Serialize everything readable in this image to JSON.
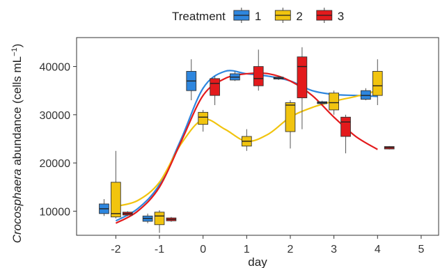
{
  "chart_data": {
    "type": "box",
    "xlabel": "day",
    "ylabel_italic": "Crocosphaera",
    "ylabel_rest": " abundance (cells mL",
    "ylabel_sup": "−1",
    "ylabel_close": ")",
    "legend": {
      "title": "Treatment",
      "position": "top",
      "entries": [
        "1",
        "2",
        "3"
      ]
    },
    "xlim": [
      -2.9,
      5.4
    ],
    "ylim": [
      5000,
      46000
    ],
    "x_ticks": [
      -2,
      -1,
      0,
      1,
      2,
      3,
      4,
      5
    ],
    "y_ticks": [
      10000,
      20000,
      30000,
      40000
    ],
    "grid": false,
    "series": [
      {
        "name": "1",
        "color": "#2E86DE",
        "boxes": [
          {
            "x": -2,
            "low": 9000,
            "q1": 9500,
            "median": 10500,
            "q3": 11500,
            "high": 12500
          },
          {
            "x": -1,
            "low": 7500,
            "q1": 7900,
            "median": 8500,
            "q3": 9000,
            "high": 9500
          },
          {
            "x": 0,
            "low": 33000,
            "q1": 35000,
            "median": 37000,
            "q3": 39000,
            "high": 41500
          },
          {
            "x": 1,
            "low": 37000,
            "q1": 37200,
            "median": 37800,
            "q3": 38500,
            "high": 39000
          },
          {
            "x": 2,
            "low": 37200,
            "q1": 37400,
            "median": 37600,
            "q3": 37800,
            "high": 38000
          },
          {
            "x": 3,
            "low": 32200,
            "q1": 32300,
            "median": 32500,
            "q3": 32700,
            "high": 32900
          },
          {
            "x": 4,
            "low": 33000,
            "q1": 33200,
            "median": 34000,
            "q3": 35000,
            "high": 35500
          }
        ],
        "trend": [
          [
            -2,
            8000
          ],
          [
            -1.5,
            10500
          ],
          [
            -1,
            15500
          ],
          [
            -0.5,
            25000
          ],
          [
            0,
            35500
          ],
          [
            0.5,
            39000
          ],
          [
            1,
            38500
          ],
          [
            1.5,
            38000
          ],
          [
            2,
            37000
          ],
          [
            2.5,
            35000
          ],
          [
            3,
            34200
          ],
          [
            3.5,
            34000
          ],
          [
            4,
            33800
          ]
        ]
      },
      {
        "name": "2",
        "color": "#F1C40F",
        "boxes": [
          {
            "x": -2,
            "low": 8500,
            "q1": 8800,
            "median": 9500,
            "q3": 16000,
            "high": 22500
          },
          {
            "x": -1,
            "low": 5500,
            "q1": 7200,
            "median": 9000,
            "q3": 9800,
            "high": 10200
          },
          {
            "x": 0,
            "low": 26500,
            "q1": 28000,
            "median": 29500,
            "q3": 30500,
            "high": 31000
          },
          {
            "x": 1,
            "low": 22500,
            "q1": 23500,
            "median": 24500,
            "q3": 25500,
            "high": 27000
          },
          {
            "x": 2,
            "low": 23000,
            "q1": 26500,
            "median": 32000,
            "q3": 32500,
            "high": 33000
          },
          {
            "x": 3,
            "low": 30000,
            "q1": 31000,
            "median": 32500,
            "q3": 34500,
            "high": 35000
          },
          {
            "x": 4,
            "low": 32000,
            "q1": 34000,
            "median": 36000,
            "q3": 39000,
            "high": 41500
          }
        ],
        "trend": [
          [
            -2,
            11000
          ],
          [
            -1.5,
            12200
          ],
          [
            -1,
            16000
          ],
          [
            -0.5,
            24000
          ],
          [
            0,
            29000
          ],
          [
            0.5,
            27000
          ],
          [
            1,
            24500
          ],
          [
            1.5,
            26000
          ],
          [
            2,
            29500
          ],
          [
            2.5,
            31500
          ],
          [
            3,
            32800
          ],
          [
            3.5,
            33800
          ],
          [
            4,
            35000
          ]
        ]
      },
      {
        "name": "3",
        "color": "#E31A1C",
        "boxes": [
          {
            "x": -2,
            "low": 9000,
            "q1": 9200,
            "median": 9500,
            "q3": 9800,
            "high": 10000
          },
          {
            "x": -1,
            "low": 7800,
            "q1": 8000,
            "median": 8300,
            "q3": 8600,
            "high": 8800
          },
          {
            "x": 0,
            "low": 32000,
            "q1": 34000,
            "median": 36500,
            "q3": 37500,
            "high": 38000
          },
          {
            "x": 1,
            "low": 35000,
            "q1": 36000,
            "median": 37500,
            "q3": 40000,
            "high": 43500
          },
          {
            "x": 2,
            "low": 27000,
            "q1": 33500,
            "median": 40000,
            "q3": 42000,
            "high": 44000
          },
          {
            "x": 3,
            "low": 22000,
            "q1": 25500,
            "median": 28500,
            "q3": 29500,
            "high": 30000
          },
          {
            "x": 4,
            "low": 22800,
            "q1": 22900,
            "median": 23200,
            "q3": 23400,
            "high": 23500
          }
        ],
        "trend": [
          [
            -2,
            7500
          ],
          [
            -1.5,
            10000
          ],
          [
            -1,
            15000
          ],
          [
            -0.5,
            24500
          ],
          [
            0,
            34000
          ],
          [
            0.5,
            37500
          ],
          [
            1,
            38500
          ],
          [
            1.5,
            38500
          ],
          [
            2,
            37000
          ],
          [
            2.5,
            34000
          ],
          [
            3,
            29500
          ],
          [
            3.5,
            25500
          ],
          [
            4,
            22800
          ]
        ]
      }
    ]
  }
}
